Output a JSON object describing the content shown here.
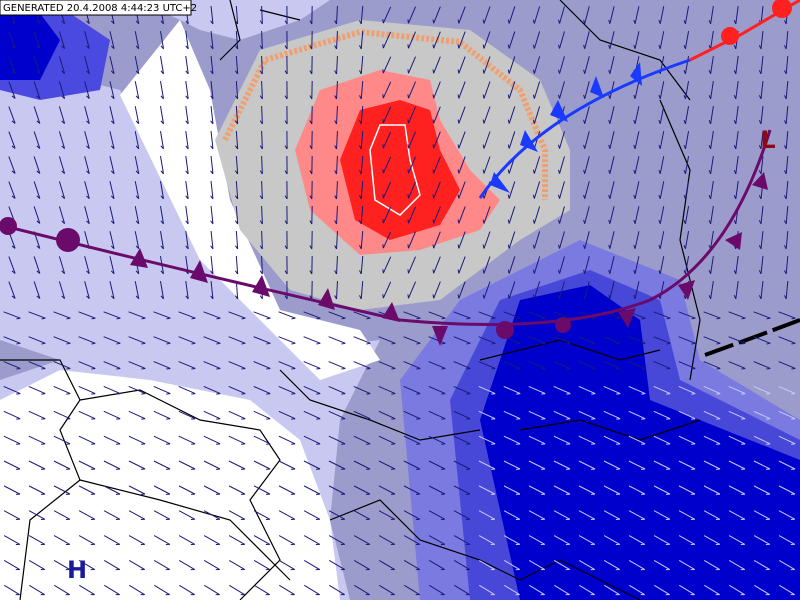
{
  "header": {
    "generated": "GENERATED 20.4.2008 4:44:23 UTC+2"
  },
  "pressure_centers": [
    {
      "label": "L"
    },
    {
      "label": "H"
    }
  ]
}
